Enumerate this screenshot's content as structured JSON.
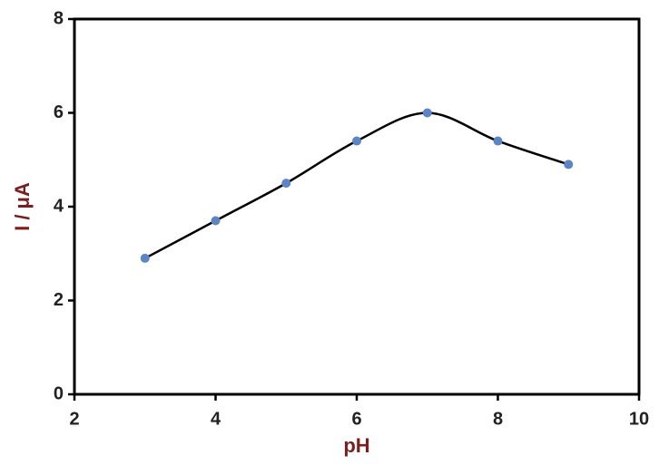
{
  "chart_data": {
    "type": "line",
    "x_label": "pH",
    "y_label": "I / μA",
    "x": [
      3,
      4,
      5,
      6,
      7,
      8,
      9
    ],
    "values": [
      2.9,
      3.7,
      4.5,
      5.4,
      6.0,
      5.4,
      4.9
    ],
    "line_color": "#000000",
    "marker_color": "#5b85c4",
    "smooth": true,
    "xlim": [
      2,
      10
    ],
    "xticks": [
      2,
      4,
      6,
      8,
      10
    ],
    "ylim": [
      0,
      8
    ],
    "yticks": [
      0,
      2,
      4,
      6,
      8
    ]
  }
}
